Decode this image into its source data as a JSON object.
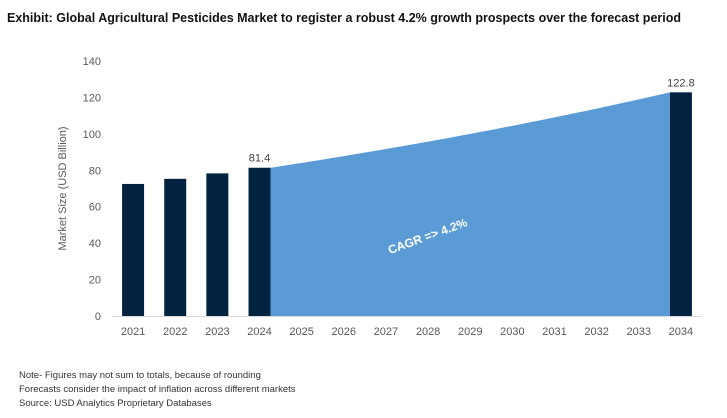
{
  "title": "Exhibit: Global Agricultural Pesticides Market to register a robust 4.2% growth prospects over the forecast period",
  "notes": [
    "Note- Figures may not sum to totals, because of rounding",
    "Forecasts consider the impact of inflation across different markets",
    "Source: USD Analytics Proprietary Databases"
  ],
  "chart_data": {
    "type": "bar",
    "categories": [
      "2021",
      "2022",
      "2023",
      "2024",
      "2025",
      "2026",
      "2027",
      "2028",
      "2029",
      "2030",
      "2031",
      "2032",
      "2033",
      "2034"
    ],
    "historical": [
      {
        "year": "2021",
        "value": 72.5
      },
      {
        "year": "2022",
        "value": 75.3
      },
      {
        "year": "2023",
        "value": 78.3
      },
      {
        "year": "2024",
        "value": 81.4
      }
    ],
    "forecast_bar": {
      "year": "2034",
      "value": 122.8
    },
    "forecast_area": {
      "from_year": "2024",
      "to_year": "2034",
      "start_value": 81.4,
      "end_value": 122.8,
      "growth_rate": 0.042
    },
    "data_labels": [
      {
        "year": "2024",
        "text": "81.4"
      },
      {
        "year": "2034",
        "text": "122.8"
      }
    ],
    "annotation": "CAGR => 4.2%",
    "ylabel": "Market Size (USD Billion)",
    "xlabel": "",
    "ylim": [
      0,
      140
    ],
    "yticks": [
      0,
      20,
      40,
      60,
      80,
      100,
      120,
      140
    ],
    "grid": false,
    "colors": {
      "bar": "#022340",
      "area": "#5b9bd5",
      "axis": "#d9d9d9",
      "text": "#595959"
    }
  }
}
